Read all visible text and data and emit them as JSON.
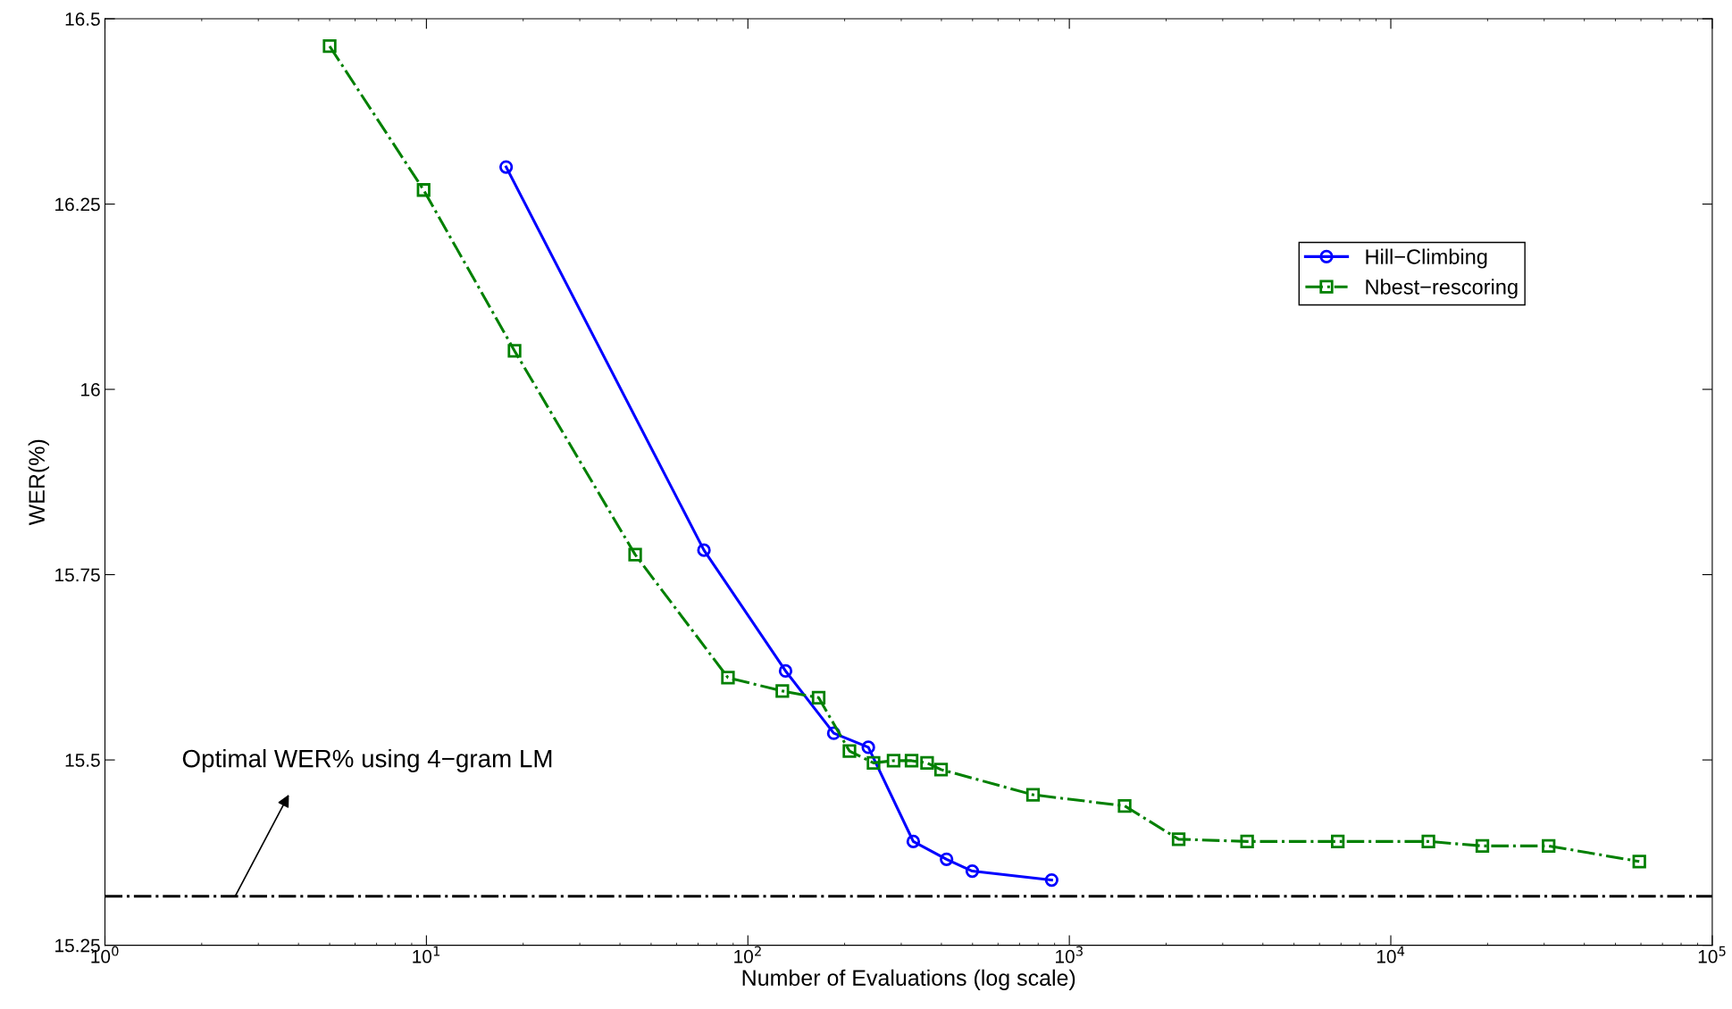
{
  "chart_data": {
    "type": "line",
    "xlabel": "Number of Evaluations (log scale)",
    "ylabel": "WER(%)",
    "log": "x",
    "grid": false,
    "legend": "top right",
    "xlim": [
      1,
      100000
    ],
    "xticks": [
      {
        "value": 1,
        "label": "10$^{0}$"
      },
      {
        "value": 10,
        "label": "10$^{1}$"
      },
      {
        "value": 100,
        "label": "10$^{2}$"
      },
      {
        "value": 1000,
        "label": "10$^{3}$"
      },
      {
        "value": 10000,
        "label": "10$^{4}$"
      },
      {
        "value": 100000,
        "label": "10$^{5}$"
      }
    ],
    "ylim": [
      15.25,
      16.5
    ],
    "yticks": [
      15.25,
      15.5,
      15.75,
      16,
      16.25,
      16.5
    ],
    "series": [
      {
        "name": "Hill−Climbing",
        "color": "#0000ff",
        "marker": "circle",
        "line_style": "solid",
        "x": [
          17.7,
          73,
          131,
          185,
          237,
          327,
          415,
          499,
          881
        ],
        "values": [
          16.3,
          15.783,
          15.62,
          15.536,
          15.517,
          15.39,
          15.366,
          15.35,
          15.338
        ]
      },
      {
        "name": "Nbest−rescoring",
        "color": "#008000",
        "marker": "square",
        "line_style": "dashdot",
        "x": [
          5.0,
          9.8,
          18.8,
          44.6,
          86.7,
          128,
          166,
          207,
          246,
          284,
          323,
          361,
          399,
          771,
          1486,
          2188,
          3573,
          6840,
          13090,
          19270,
          30970,
          59300
        ],
        "values": [
          16.463,
          16.269,
          16.052,
          15.777,
          15.611,
          15.593,
          15.584,
          15.512,
          15.496,
          15.499,
          15.499,
          15.496,
          15.487,
          15.453,
          15.438,
          15.393,
          15.39,
          15.39,
          15.39,
          15.384,
          15.384,
          15.363
        ]
      }
    ],
    "ref_lines": [
      {
        "axis": "y",
        "value": 15.316,
        "color": "#000000",
        "line_style": "dashdot"
      }
    ],
    "annotations": [
      {
        "text": "Optimal WER% using 4−gram LM",
        "x": 2.54,
        "y": 15.316
      }
    ]
  }
}
